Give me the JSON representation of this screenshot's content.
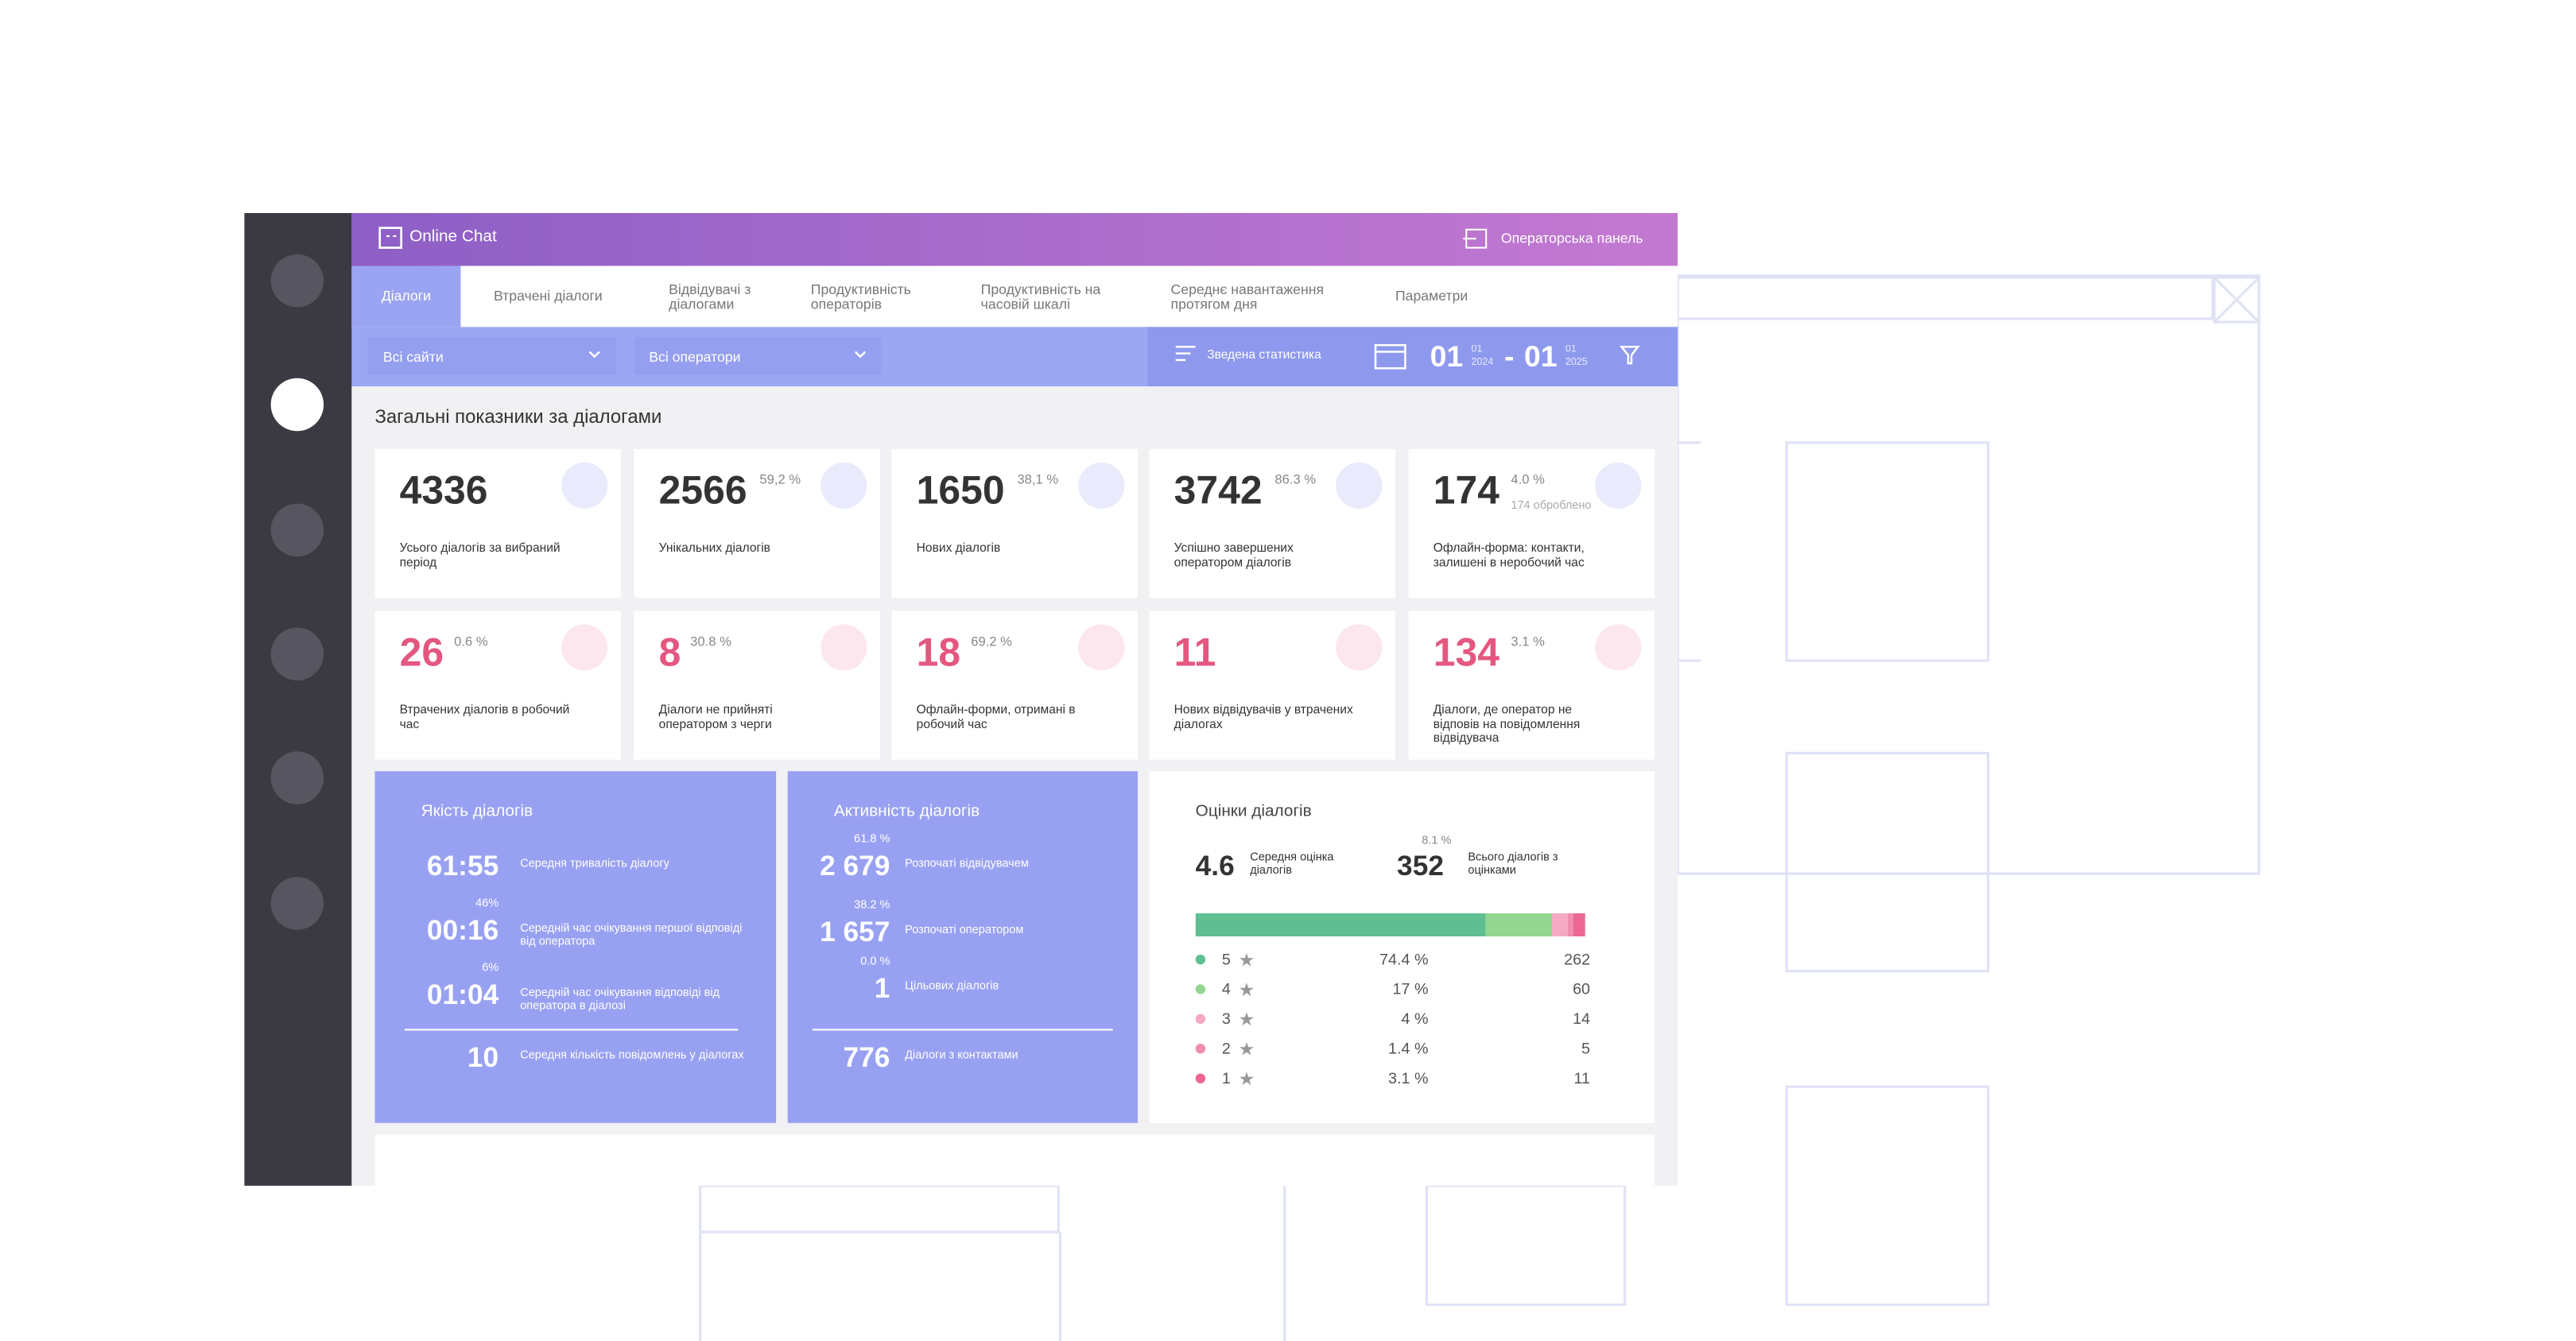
{
  "header": {
    "brand": "Online Chat",
    "operator_panel": "Операторська панель"
  },
  "tabs": [
    "Діалоги",
    "Втрачені діалоги",
    "Відвідувачі з діалогами",
    "Продуктивність операторів",
    "Продуктивність на часовій шкалі",
    "Середнє навантаження протягом дня",
    "Параметри"
  ],
  "filters": {
    "sites": "Всі сайти",
    "operators": "Всі оператори",
    "summary": "Зведена статистика",
    "date_from": {
      "day": "01",
      "month": "01",
      "year": "2024"
    },
    "separator": "-",
    "date_to": {
      "day": "01",
      "month": "01",
      "year": "2025"
    }
  },
  "section_title": "Загальні показники за діалогами",
  "cards": [
    {
      "value": "4336",
      "label": "Усього діалогів за вибраний період"
    },
    {
      "value": "2566",
      "pct": "59,2 %",
      "label": "Унікальних діалогів"
    },
    {
      "value": "1650",
      "pct": "38,1 %",
      "label": "Нових діалогів"
    },
    {
      "value": "3742",
      "pct": "86.3 %",
      "label": "Успішно завершених оператором діалогів"
    },
    {
      "value": "174",
      "pct": "4.0 %",
      "note": "174 оброблено",
      "label": "Офлайн-форма: контакти, залишені в неробочий час"
    }
  ],
  "lost_cards": [
    {
      "value": "26",
      "pct": "0.6 %",
      "label": "Втрачених діалогів в робочий час"
    },
    {
      "value": "8",
      "pct": "30.8 %",
      "label": "Діалоги не прийняті оператором з черги"
    },
    {
      "value": "18",
      "pct": "69.2 %",
      "label": "Офлайн-форми, отримані в робочий час"
    },
    {
      "value": "11",
      "label": "Нових відвідувачів у втрачених діалогах"
    },
    {
      "value": "134",
      "pct": "3.1 %",
      "label": "Діалоги, де оператор не відповів на повідомлення відвідувача"
    }
  ],
  "quality": {
    "title": "Якість діалогів",
    "rows": [
      {
        "value": "61:55",
        "label": "Середня тривалість діалогу"
      },
      {
        "value": "00:16",
        "pct": "46%",
        "label": "Середній час очікування першої відповіді від оператора"
      },
      {
        "value": "01:04",
        "pct": "6%",
        "label": "Середній час очікування відповіді від оператора в діалозі"
      },
      {
        "value": "10",
        "label": "Середня кількість повідомлень у діалогах"
      }
    ]
  },
  "activity": {
    "title": "Активність діалогів",
    "rows": [
      {
        "value": "2 679",
        "pct": "61.8 %",
        "label": "Розпочаті відвідувачем"
      },
      {
        "value": "1 657",
        "pct": "38.2 %",
        "label": "Розпочаті оператором"
      },
      {
        "value": "1",
        "pct": "0.0 %",
        "label": "Цільових діалогів"
      },
      {
        "value": "776",
        "label": "Діалоги з контактами"
      }
    ]
  },
  "ratings": {
    "title": "Оцінки діалогів",
    "average": "4.6",
    "average_label": "Середня оцінка діалогів",
    "total": "352",
    "total_pct": "8.1 %",
    "total_label": "Всього діалогів з оцінками",
    "rows": [
      {
        "stars": 5,
        "share": 74.4,
        "share_label": "74.4 %",
        "count": 262,
        "color": "#5fbf92"
      },
      {
        "stars": 4,
        "share": 17,
        "share_label": "17 %",
        "count": 60,
        "color": "#93d68f"
      },
      {
        "stars": 3,
        "share": 4,
        "share_label": "4 %",
        "count": 14,
        "color": "#f5a9c2"
      },
      {
        "stars": 2,
        "share": 1.4,
        "share_label": "1.4 %",
        "count": 5,
        "color": "#f08db0"
      },
      {
        "stars": 1,
        "share": 3.1,
        "share_label": "3.1 %",
        "count": 11,
        "color": "#ec6795"
      }
    ]
  }
}
